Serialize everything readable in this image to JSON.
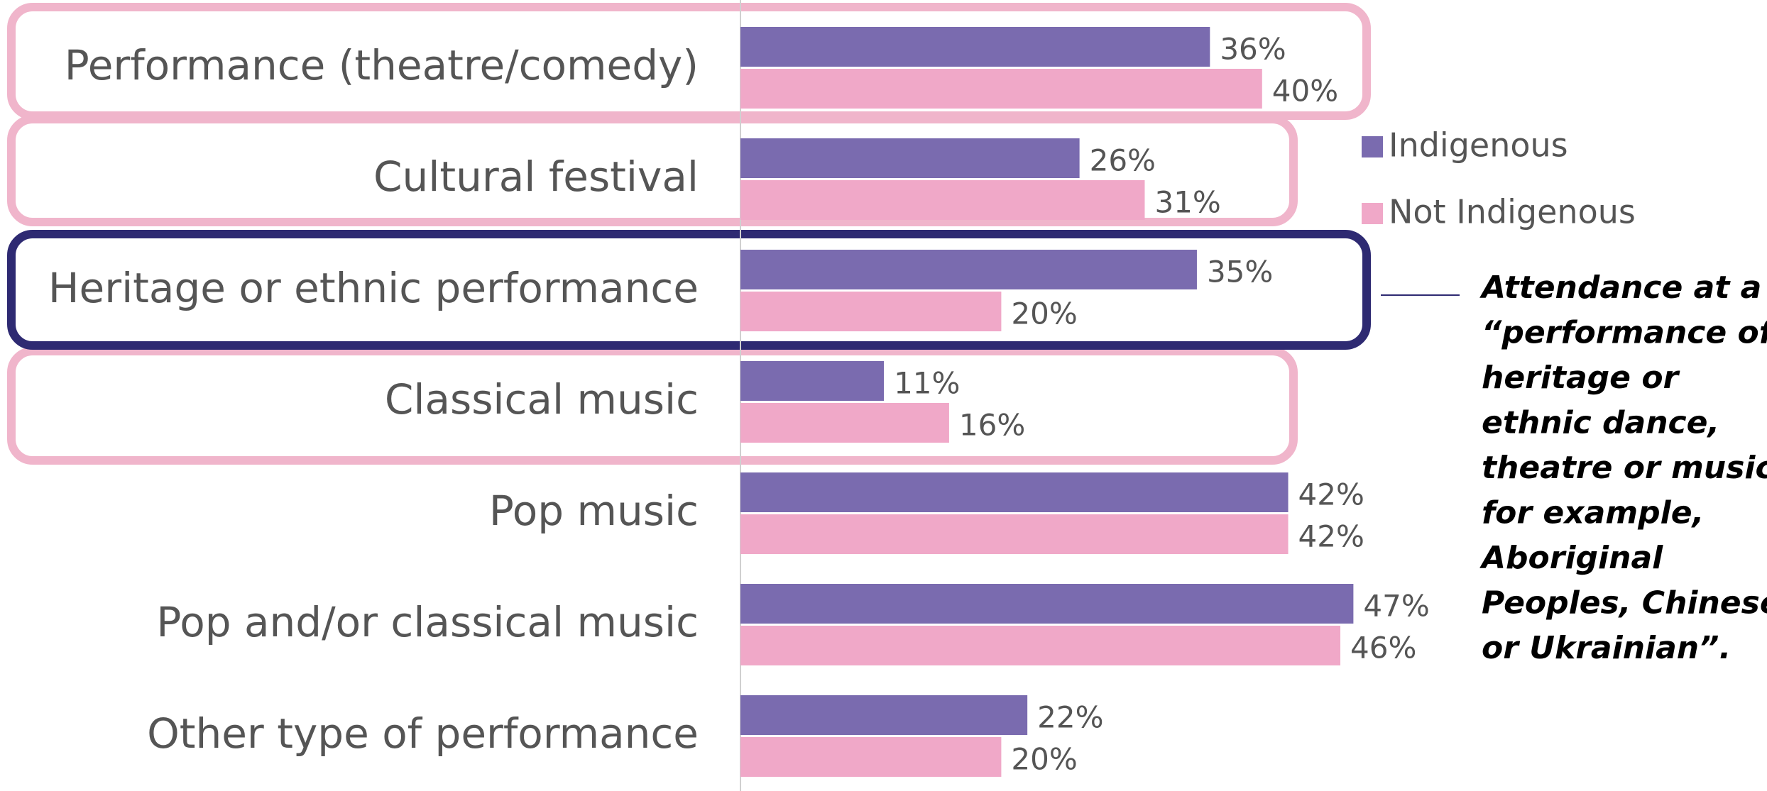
{
  "chart_data": {
    "type": "bar",
    "orientation": "horizontal",
    "categories": [
      "Performance (theatre/comedy)",
      "Cultural festival",
      "Heritage or ethnic performance",
      "Classical music",
      "Pop music",
      "Pop and/or classical music",
      "Other type of performance"
    ],
    "series": [
      {
        "name": "Indigenous",
        "color": "#7a6baf",
        "values": [
          36,
          26,
          35,
          11,
          42,
          47,
          22
        ],
        "value_labels": [
          "36%",
          "26%",
          "35%",
          "11%",
          "42%",
          "47%",
          "22%"
        ]
      },
      {
        "name": "Not Indigenous",
        "color": "#f0a8c8",
        "values": [
          40,
          31,
          20,
          16,
          42,
          46,
          20
        ],
        "value_labels": [
          "40%",
          "31%",
          "20%",
          "16%",
          "42%",
          "46%",
          "20%"
        ]
      }
    ],
    "annotation": [
      "Attendance at a",
      "“performance of",
      "heritage or",
      "ethnic dance,",
      "theatre or music,",
      "for example,",
      "Aboriginal",
      "Peoples, Chinese",
      "or Ukrainian”."
    ]
  }
}
